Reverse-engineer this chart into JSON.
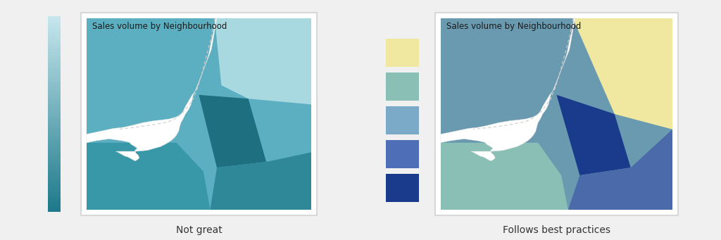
{
  "title": "Sales volume by Neighbourhood",
  "left_label": "Not great",
  "right_label": "Follows best practices",
  "bg_color": "#f0f0f0",
  "left_colorbar_top": "#1e7a8c",
  "left_colorbar_bottom": "#c8e8ee",
  "left_regions": {
    "bg_large": "#5bafc0",
    "top_right": "#a8d8e0",
    "center_rounded": "#1e7080",
    "bottom_right": "#2e8898",
    "bottom_strip": "#3898a8"
  },
  "right_legend_colors": [
    "#1a3a8c",
    "#4e6eb8",
    "#7aaac8",
    "#8abfb5",
    "#f0e8a0"
  ],
  "right_regions": {
    "top_left": "#6a9ab0",
    "top_right": "#f0e8a0",
    "center_rounded": "#1a3a8c",
    "bottom_right": "#4a6aaa",
    "bottom_left": "#8abfb5"
  }
}
